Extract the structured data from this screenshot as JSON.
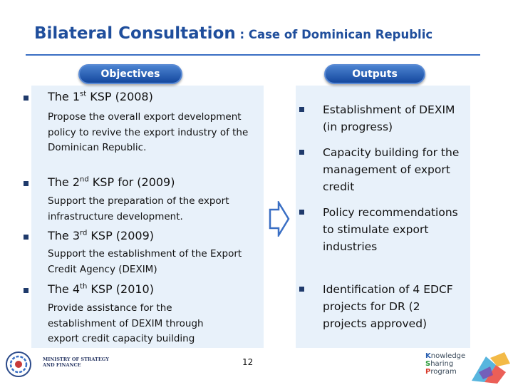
{
  "title": {
    "main": "Bilateral Consultation",
    "sub": " : Case of Dominican Republic"
  },
  "headers": {
    "objectives": "Objectives",
    "outputs": "Outputs"
  },
  "objectives": [
    {
      "head_pre": "The 1",
      "sup": "st",
      "head_post": " KSP (2008)",
      "body": "Propose the overall export development policy to revive the export industry of the Dominican Republic."
    },
    {
      "head_pre": "The 2",
      "sup": "nd",
      "head_post": " KSP for (2009)",
      "body": "Support the preparation of the export infrastructure development."
    },
    {
      "head_pre": "The  3",
      "sup": "rd",
      "head_post": " KSP (2009)",
      "body": "Support the establishment of the Export Credit Agency (DEXIM)"
    },
    {
      "head_pre": "The 4",
      "sup": "th",
      "head_post": " KSP (2010)",
      "body": "Provide assistance for the establishment of DEXIM through export credit capacity building"
    }
  ],
  "outputs": [
    "Establishment of DEXIM (in progress)",
    "Capacity building for the management of export credit",
    "Policy recommendations to stimulate export industries",
    "Identification of 4 EDCF projects for DR (2 projects approved)"
  ],
  "footer": {
    "ministry_line1": "MINISTRY OF STRATEGY",
    "ministry_line2": "AND FINANCE",
    "page_number": "12",
    "ksp_line1_first": "K",
    "ksp_line1_rest": "nowledge",
    "ksp_line2_first": "S",
    "ksp_line2_rest": "haring",
    "ksp_line3_first": "P",
    "ksp_line3_rest": "rogram"
  },
  "colors": {
    "title": "#1f4e9c",
    "panel": "#e8f1fa",
    "pill": "#15489e",
    "bullet": "#1f3a6b"
  },
  "icons": [
    "bullet-square-icon",
    "right-arrow-icon",
    "ministry-emblem-icon",
    "ksp-logo-icon"
  ]
}
